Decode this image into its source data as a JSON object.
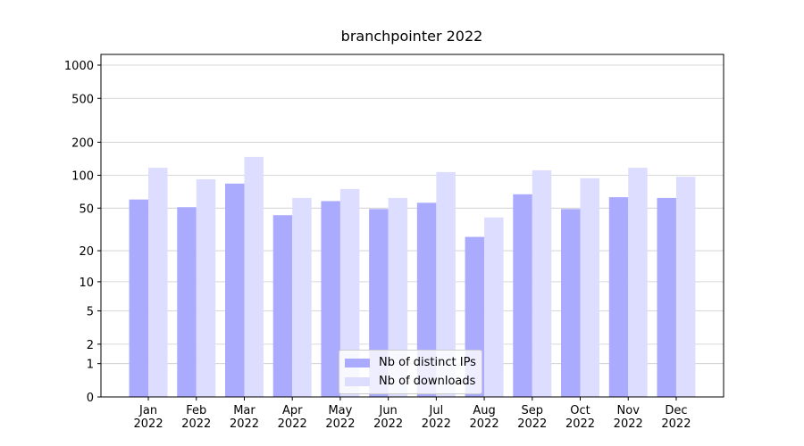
{
  "chart_data": {
    "type": "bar",
    "title": "branchpointer 2022",
    "categories": [
      "Jan\n2022",
      "Feb\n2022",
      "Mar\n2022",
      "Apr\n2022",
      "May\n2022",
      "Jun\n2022",
      "Jul\n2022",
      "Aug\n2022",
      "Sep\n2022",
      "Oct\n2022",
      "Nov\n2022",
      "Dec\n2022"
    ],
    "series": [
      {
        "name": "Nb of distinct IPs",
        "color": "#aaaaff",
        "values": [
          60,
          51,
          84,
          43,
          58,
          49,
          56,
          27,
          67,
          49,
          63,
          62
        ]
      },
      {
        "name": "Nb of downloads",
        "color": "#ddddff",
        "values": [
          117,
          92,
          147,
          62,
          75,
          62,
          107,
          41,
          111,
          94,
          117,
          97
        ]
      }
    ],
    "yscale": "log1p",
    "ylim": [
      0,
      1250
    ],
    "yticks": [
      0,
      1,
      2,
      5,
      10,
      20,
      50,
      100,
      200,
      500,
      1000
    ],
    "grid": true,
    "legend": "lower center"
  }
}
